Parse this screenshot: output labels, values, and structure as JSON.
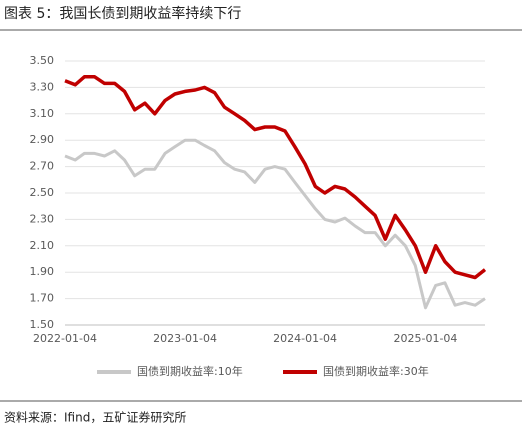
{
  "chart_data": {
    "type": "line",
    "title": "图表 5：我国长债到期收益率持续下行",
    "source": "资料来源：Ifind，五矿证券研究所",
    "x": [
      "2022-01-04",
      "2022-02-04",
      "2022-03-04",
      "2022-04-04",
      "2022-05-04",
      "2022-06-04",
      "2022-07-04",
      "2022-08-04",
      "2022-09-04",
      "2022-10-04",
      "2022-11-04",
      "2022-12-04",
      "2023-01-04",
      "2023-02-04",
      "2023-03-04",
      "2023-04-04",
      "2023-05-04",
      "2023-06-04",
      "2023-07-04",
      "2023-08-04",
      "2023-09-04",
      "2023-10-04",
      "2023-11-04",
      "2023-12-04",
      "2024-01-04",
      "2024-02-04",
      "2024-03-04",
      "2024-04-04",
      "2024-05-04",
      "2024-06-04",
      "2024-07-04",
      "2024-08-04",
      "2024-09-04",
      "2024-10-04",
      "2024-11-04",
      "2024-12-04",
      "2025-01-04",
      "2025-02-04",
      "2025-03-04",
      "2025-04-04",
      "2025-05-04",
      "2025-06-04",
      "2025-07-04"
    ],
    "series": [
      {
        "name": "国债到期收益率:10年",
        "color": "#c8c8c8",
        "values": [
          2.78,
          2.75,
          2.8,
          2.8,
          2.78,
          2.82,
          2.75,
          2.63,
          2.68,
          2.68,
          2.8,
          2.85,
          2.9,
          2.9,
          2.86,
          2.82,
          2.73,
          2.68,
          2.66,
          2.58,
          2.68,
          2.7,
          2.68,
          2.58,
          2.48,
          2.38,
          2.3,
          2.28,
          2.31,
          2.25,
          2.2,
          2.2,
          2.1,
          2.18,
          2.1,
          1.95,
          1.63,
          1.8,
          1.82,
          1.65,
          1.67,
          1.65,
          1.7
        ]
      },
      {
        "name": "国债到期收益率:30年",
        "color": "#c00000",
        "values": [
          3.35,
          3.32,
          3.38,
          3.38,
          3.33,
          3.33,
          3.27,
          3.13,
          3.18,
          3.1,
          3.2,
          3.25,
          3.27,
          3.28,
          3.3,
          3.26,
          3.15,
          3.1,
          3.05,
          2.98,
          3.0,
          3.0,
          2.97,
          2.85,
          2.72,
          2.55,
          2.5,
          2.55,
          2.53,
          2.47,
          2.4,
          2.33,
          2.15,
          2.33,
          2.22,
          2.1,
          1.9,
          2.1,
          1.98,
          1.9,
          1.88,
          1.86,
          1.92
        ]
      }
    ],
    "xlim": [
      "2022-01-04",
      "2025-07-04"
    ],
    "xticks": [
      "2022-01-04",
      "2023-01-04",
      "2024-01-04",
      "2025-01-04"
    ],
    "ylim": [
      1.5,
      3.5
    ],
    "yticks": [
      {
        "value": 1.5,
        "label": "1.50"
      },
      {
        "value": 1.7,
        "label": "1.70"
      },
      {
        "value": 1.9,
        "label": "1.90"
      },
      {
        "value": 2.1,
        "label": "2.10"
      },
      {
        "value": 2.3,
        "label": "2.30"
      },
      {
        "value": 2.5,
        "label": "2.50"
      },
      {
        "value": 2.7,
        "label": "2.70"
      },
      {
        "value": 2.9,
        "label": "2.90"
      },
      {
        "value": 3.1,
        "label": "3.10"
      },
      {
        "value": 3.3,
        "label": "3.30"
      },
      {
        "value": 3.5,
        "label": "3.50"
      }
    ],
    "grid": true
  }
}
